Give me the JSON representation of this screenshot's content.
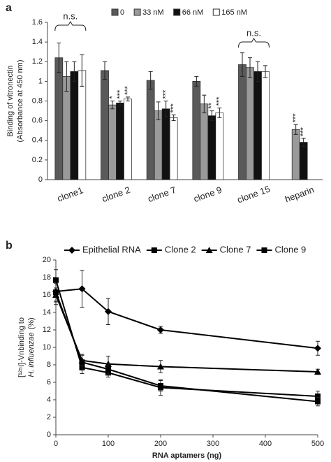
{
  "chart_data": [
    {
      "type": "bar",
      "panel": "a",
      "ylabel": [
        "Binding of vitronectin",
        "(Absorbance at 450 nm)"
      ],
      "categories": [
        "clone1",
        "clone 2",
        "clone 7",
        "clone 9",
        "clone 15",
        "heparin"
      ],
      "series": [
        {
          "name": "0",
          "color": "#5a5a5a",
          "values": [
            1.24,
            1.11,
            1.01,
            1.0,
            1.17,
            null
          ],
          "errors": [
            0.15,
            0.09,
            0.09,
            0.05,
            0.12,
            null
          ],
          "annotations": [
            null,
            null,
            null,
            null,
            null,
            null
          ]
        },
        {
          "name": "33 nM",
          "color": "#9a9a9a",
          "values": [
            1.05,
            0.76,
            0.7,
            0.77,
            1.14,
            0.51
          ],
          "errors": [
            0.15,
            0.04,
            0.09,
            0.09,
            0.1,
            0.05
          ],
          "annotations": [
            null,
            "*",
            null,
            null,
            null,
            "***"
          ]
        },
        {
          "name": "66 nM",
          "color": "#111111",
          "values": [
            1.1,
            0.78,
            0.72,
            0.65,
            1.1,
            0.38
          ],
          "errors": [
            0.1,
            0.02,
            0.08,
            0.05,
            0.1,
            0.04
          ],
          "annotations": [
            null,
            "***",
            "***",
            "**",
            null,
            "***"
          ]
        },
        {
          "name": "165 nM",
          "color": "#ffffff",
          "values": [
            1.11,
            0.82,
            0.63,
            0.68,
            1.1,
            null
          ],
          "errors": [
            0.16,
            0.02,
            0.03,
            0.05,
            0.06,
            null
          ],
          "annotations": [
            null,
            "***",
            "***",
            "***",
            null,
            null
          ]
        }
      ],
      "annotations": [
        "n.s.",
        "n.s."
      ],
      "ylim": [
        0,
        1.6
      ],
      "yticks": [
        0,
        0.2,
        0.4,
        0.6,
        0.8,
        1,
        1.2,
        1.4,
        1.6
      ]
    },
    {
      "type": "line",
      "panel": "b",
      "xlabel": "RNA aptamers (ng)",
      "ylabel": [
        "[¹²⁵I]-Vnbinding to",
        "H. influenzae",
        "(%)"
      ],
      "x": [
        0,
        50,
        100,
        200,
        500
      ],
      "series": [
        {
          "name": "Epithelial RNA",
          "color": "#000000",
          "marker": "diamond",
          "values": [
            16.4,
            16.7,
            14.1,
            12.0,
            9.9
          ],
          "errors": [
            1.5,
            2.1,
            1.5,
            0.4,
            0.8
          ]
        },
        {
          "name": "Clone 2",
          "color": "#000000",
          "marker": "square",
          "values": [
            17.7,
            7.7,
            7.1,
            5.4,
            4.4
          ],
          "errors": [
            1.2,
            0.7,
            0.5,
            0.9,
            0.6
          ]
        },
        {
          "name": "Clone 7",
          "color": "#000000",
          "marker": "triangle",
          "values": [
            16.0,
            8.5,
            8.1,
            7.8,
            7.2
          ],
          "errors": [
            0.8,
            0.6,
            0.9,
            0.7,
            0.3
          ]
        },
        {
          "name": "Clone 9",
          "color": "#000000",
          "marker": "square",
          "values": [
            16.3,
            8.3,
            7.5,
            5.6,
            3.8
          ],
          "errors": [
            1.0,
            0.9,
            0.6,
            0.6,
            0.5
          ]
        }
      ],
      "xlim": [
        0,
        500
      ],
      "xticks": [
        0,
        100,
        200,
        300,
        400,
        500
      ],
      "ylim": [
        0,
        20
      ],
      "yticks": [
        0,
        2,
        4,
        6,
        8,
        10,
        12,
        14,
        16,
        18,
        20
      ]
    }
  ]
}
